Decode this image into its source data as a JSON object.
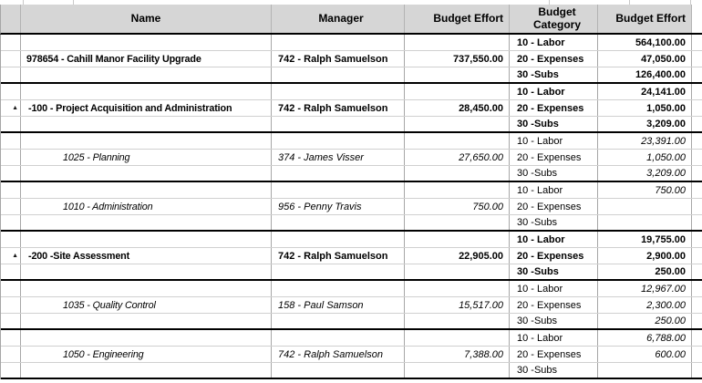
{
  "table": {
    "headers": {
      "name": "Name",
      "manager": "Manager",
      "budget_effort": "Budget Effort",
      "budget_category": "Budget Category",
      "budget_effort_detail": "Budget Effort"
    },
    "groups": [
      {
        "level": "project",
        "style": "bold",
        "expand_icon": false,
        "name": "978654 - Cahill Manor Facility Upgrade",
        "manager": "742 - Ralph Samuelson",
        "budget_effort": "737,550.00",
        "categories": [
          {
            "label": "10 - Labor",
            "value": "564,100.00"
          },
          {
            "label": "20 - Expenses",
            "value": "47,050.00"
          },
          {
            "label": "30 -Subs",
            "value": "126,400.00"
          }
        ]
      },
      {
        "level": "phase",
        "style": "bold",
        "expand_icon": true,
        "name": "-100 - Project Acquisition and Administration",
        "manager": "742 - Ralph Samuelson",
        "budget_effort": "28,450.00",
        "categories": [
          {
            "label": "10 - Labor",
            "value": "24,141.00"
          },
          {
            "label": "20 - Expenses",
            "value": "1,050.00"
          },
          {
            "label": "30 -Subs",
            "value": "3,209.00"
          }
        ]
      },
      {
        "level": "task",
        "style": "italic",
        "expand_icon": false,
        "name": "1025 - Planning",
        "manager": "374 - James Visser",
        "budget_effort": "27,650.00",
        "categories": [
          {
            "label": "10 - Labor",
            "value": "23,391.00"
          },
          {
            "label": "20 - Expenses",
            "value": "1,050.00"
          },
          {
            "label": "30 -Subs",
            "value": "3,209.00"
          }
        ]
      },
      {
        "level": "task",
        "style": "italic",
        "expand_icon": false,
        "name": "1010 - Administration",
        "manager": "956 - Penny Travis",
        "budget_effort": "750.00",
        "categories": [
          {
            "label": "10 - Labor",
            "value": "750.00"
          },
          {
            "label": "20 - Expenses",
            "value": ""
          },
          {
            "label": "30 -Subs",
            "value": ""
          }
        ]
      },
      {
        "level": "phase",
        "style": "bold",
        "expand_icon": true,
        "name": "-200 -Site Assessment",
        "manager": "742 - Ralph Samuelson",
        "budget_effort": "22,905.00",
        "categories": [
          {
            "label": "10 - Labor",
            "value": "19,755.00"
          },
          {
            "label": "20 - Expenses",
            "value": "2,900.00"
          },
          {
            "label": "30 -Subs",
            "value": "250.00"
          }
        ]
      },
      {
        "level": "task",
        "style": "italic",
        "expand_icon": false,
        "name": "1035 - Quality Control",
        "manager": "158 - Paul Samson",
        "budget_effort": "15,517.00",
        "categories": [
          {
            "label": "10 - Labor",
            "value": "12,967.00"
          },
          {
            "label": "20 - Expenses",
            "value": "2,300.00"
          },
          {
            "label": "30 -Subs",
            "value": "250.00"
          }
        ]
      },
      {
        "level": "task",
        "style": "italic",
        "expand_icon": false,
        "name": "1050 - Engineering",
        "manager": "742 - Ralph Samuelson",
        "budget_effort": "7,388.00",
        "categories": [
          {
            "label": "10 - Labor",
            "value": "6,788.00"
          },
          {
            "label": "20 - Expenses",
            "value": "600.00"
          },
          {
            "label": "30 -Subs",
            "value": ""
          }
        ]
      }
    ]
  },
  "icons": {
    "collapse_triangle": "▲"
  },
  "colors": {
    "header_bg": "#d6d6d6",
    "grid_vertical_line": "#a6a6a6",
    "row_line": "#d0d0d0",
    "group_separator": "#000000",
    "text": "#000000"
  }
}
